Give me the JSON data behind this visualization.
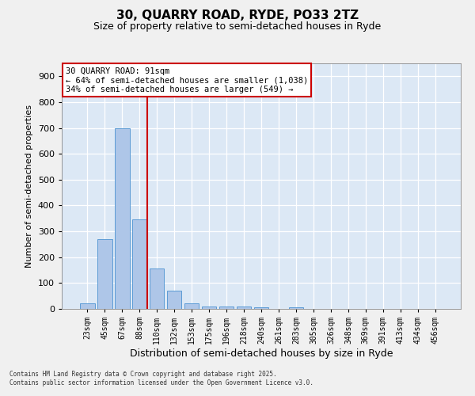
{
  "title_line1": "30, QUARRY ROAD, RYDE, PO33 2TZ",
  "title_line2": "Size of property relative to semi-detached houses in Ryde",
  "xlabel": "Distribution of semi-detached houses by size in Ryde",
  "ylabel": "Number of semi-detached properties",
  "categories": [
    "23sqm",
    "45sqm",
    "67sqm",
    "88sqm",
    "110sqm",
    "132sqm",
    "153sqm",
    "175sqm",
    "196sqm",
    "218sqm",
    "240sqm",
    "261sqm",
    "283sqm",
    "305sqm",
    "326sqm",
    "348sqm",
    "369sqm",
    "391sqm",
    "413sqm",
    "434sqm",
    "456sqm"
  ],
  "values": [
    20,
    270,
    700,
    345,
    155,
    70,
    20,
    10,
    10,
    10,
    5,
    0,
    5,
    0,
    0,
    0,
    0,
    0,
    0,
    0,
    0
  ],
  "bar_color": "#aec6e8",
  "bar_edge_color": "#5b9bd5",
  "red_line_x": 3,
  "annotation_title": "30 QUARRY ROAD: 91sqm",
  "annotation_line2": "← 64% of semi-detached houses are smaller (1,038)",
  "annotation_line3": "34% of semi-detached houses are larger (549) →",
  "annotation_box_color": "#ffffff",
  "annotation_box_edge_color": "#cc0000",
  "ylim": [
    0,
    950
  ],
  "yticks": [
    0,
    100,
    200,
    300,
    400,
    500,
    600,
    700,
    800,
    900
  ],
  "background_color": "#dce8f5",
  "grid_color": "#ffffff",
  "fig_background": "#f0f0f0",
  "footer_line1": "Contains HM Land Registry data © Crown copyright and database right 2025.",
  "footer_line2": "Contains public sector information licensed under the Open Government Licence v3.0."
}
